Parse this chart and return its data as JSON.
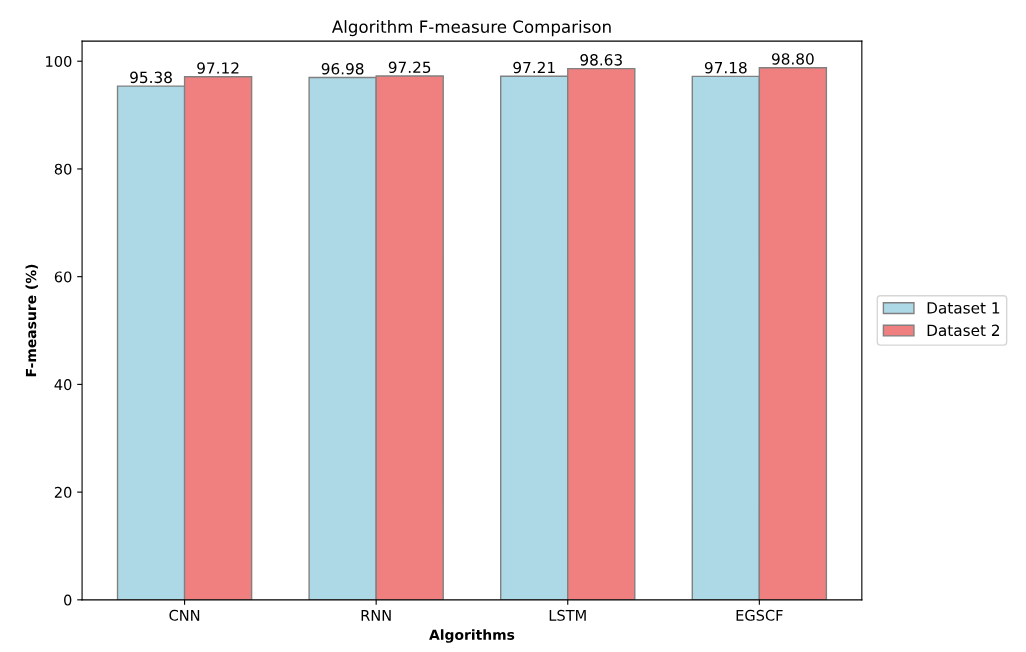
{
  "chart_data": {
    "type": "bar",
    "title": "Algorithm F-measure Comparison",
    "xlabel": "Algorithms",
    "ylabel": "F-measure (%)",
    "categories": [
      "CNN",
      "RNN",
      "LSTM",
      "EGSCF"
    ],
    "series": [
      {
        "name": "Dataset 1",
        "color": "#add8e6",
        "values": [
          95.38,
          96.98,
          97.21,
          97.18
        ],
        "value_labels": [
          "95.38",
          "96.98",
          "97.21",
          "97.18"
        ]
      },
      {
        "name": "Dataset 2",
        "color": "#f08080",
        "values": [
          97.12,
          97.25,
          98.63,
          98.8
        ],
        "value_labels": [
          "97.12",
          "97.25",
          "98.63",
          "98.80"
        ]
      }
    ],
    "ylim": [
      0,
      103.74
    ],
    "yticks": [
      0,
      20,
      40,
      60,
      80,
      100
    ],
    "legend": "right",
    "grid": false
  }
}
